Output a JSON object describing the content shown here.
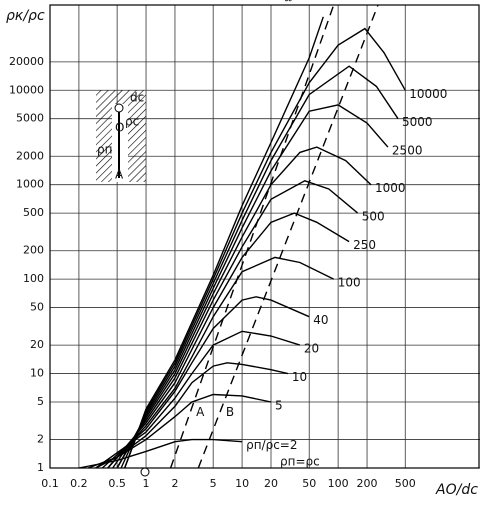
{
  "chart_data": {
    "type": "line",
    "y_title": "ρк/ρс",
    "x_title": "AO/dс",
    "log_x": true,
    "log_y": true,
    "grid": true,
    "xlim": [
      0.1,
      3000
    ],
    "ylim": [
      1,
      80000
    ],
    "xticks": [
      0.1,
      0.2,
      0.5,
      1,
      2,
      5,
      10,
      20,
      50,
      100,
      200,
      500
    ],
    "yticks": [
      1,
      2,
      5,
      10,
      20,
      50,
      100,
      200,
      500,
      1000,
      2000,
      5000,
      10000,
      20000
    ],
    "annotation": "ρп=ρс",
    "inset_labels": [
      "dс",
      "ρс",
      "ρп",
      "O",
      "A"
    ],
    "series": [
      {
        "name": "ρп/ρс=2",
        "color": "#000",
        "dashed": false,
        "x": [
          0.2,
          0.5,
          1,
          2,
          3,
          5,
          10
        ],
        "values": [
          1,
          1.2,
          1.5,
          1.9,
          2,
          2,
          1.9
        ]
      },
      {
        "name": "5",
        "color": "#000",
        "dashed": false,
        "x": [
          0.25,
          0.5,
          1,
          2,
          3,
          5,
          10,
          20
        ],
        "values": [
          1,
          1.3,
          2,
          3.5,
          5,
          6,
          5.8,
          5
        ]
      },
      {
        "name": "10",
        "color": "#000",
        "dashed": false,
        "x": [
          0.3,
          0.5,
          1,
          2,
          3,
          5,
          7,
          10,
          20,
          30
        ],
        "values": [
          1,
          1.3,
          2.2,
          4.5,
          8,
          12,
          13,
          12.5,
          11,
          10
        ]
      },
      {
        "name": "20",
        "color": "#000",
        "dashed": false,
        "x": [
          0.3,
          1,
          2,
          3,
          5,
          10,
          20,
          40
        ],
        "values": [
          1,
          2.4,
          5.5,
          10,
          20,
          28,
          25,
          20
        ]
      },
      {
        "name": "40",
        "color": "#000",
        "dashed": false,
        "x": [
          0.35,
          1,
          2,
          3,
          5,
          10,
          14,
          20,
          50
        ],
        "values": [
          1,
          2.6,
          6.5,
          13,
          30,
          60,
          65,
          60,
          40
        ]
      },
      {
        "name": "100",
        "color": "#000",
        "dashed": false,
        "x": [
          0.4,
          1,
          2,
          3,
          5,
          10,
          22,
          40,
          90
        ],
        "values": [
          1,
          2.8,
          7,
          15,
          40,
          120,
          170,
          150,
          100
        ]
      },
      {
        "name": "250",
        "color": "#000",
        "dashed": false,
        "x": [
          0.4,
          1,
          2,
          5,
          10,
          20,
          35,
          60,
          130
        ],
        "values": [
          1,
          3,
          8,
          50,
          170,
          400,
          500,
          400,
          250
        ]
      },
      {
        "name": "500",
        "color": "#000",
        "dashed": false,
        "x": [
          0.45,
          1,
          2,
          5,
          10,
          20,
          45,
          80,
          160
        ],
        "values": [
          1,
          3.2,
          9,
          60,
          220,
          700,
          1100,
          900,
          500
        ]
      },
      {
        "name": "1000",
        "color": "#000",
        "dashed": false,
        "x": [
          0.5,
          1,
          2,
          5,
          10,
          20,
          40,
          60,
          120,
          220
        ],
        "values": [
          1,
          3.4,
          10,
          70,
          280,
          1000,
          2200,
          2500,
          1800,
          1000
        ]
      },
      {
        "name": "2500",
        "color": "#000",
        "dashed": false,
        "x": [
          0.5,
          1,
          2,
          5,
          10,
          20,
          50,
          100,
          200,
          330
        ],
        "values": [
          1,
          3.6,
          11,
          80,
          350,
          1400,
          6000,
          7000,
          4500,
          2500
        ]
      },
      {
        "name": "5000",
        "color": "#000",
        "dashed": false,
        "x": [
          0.55,
          1,
          2,
          5,
          10,
          20,
          50,
          130,
          250,
          420
        ],
        "values": [
          1,
          3.8,
          12,
          90,
          420,
          1800,
          9000,
          18000,
          11000,
          5000
        ]
      },
      {
        "name": "10000",
        "color": "#000",
        "dashed": false,
        "x": [
          0.6,
          1,
          2,
          5,
          10,
          20,
          50,
          100,
          190,
          300,
          500
        ],
        "values": [
          1,
          4,
          13,
          100,
          500,
          2200,
          12000,
          30000,
          45000,
          25000,
          10000
        ]
      },
      {
        "name": "∞",
        "color": "#000",
        "dashed": false,
        "x": [
          0.6,
          1,
          2,
          5,
          10,
          20,
          50,
          70
        ],
        "values": [
          1,
          4.2,
          14,
          110,
          600,
          2800,
          22000,
          60000
        ]
      },
      {
        "name": "A",
        "color": "#000",
        "dashed": true,
        "x": [
          1.8,
          90
        ],
        "values": [
          1,
          80000
        ]
      },
      {
        "name": "B",
        "color": "#000",
        "dashed": true,
        "x": [
          3.5,
          260
        ],
        "values": [
          1,
          80000
        ]
      }
    ]
  }
}
